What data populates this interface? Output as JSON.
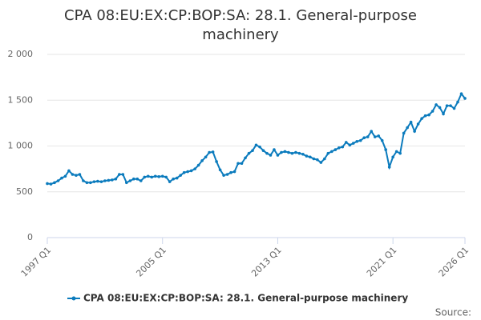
{
  "chart_data": {
    "type": "line",
    "title": "CPA 08:EU:EX:CP:BOP:SA: 28.1. General-purpose machinery",
    "source_label": "Source:",
    "categories": [
      "1997 Q1",
      null,
      null,
      null,
      null,
      null,
      null,
      null,
      null,
      null,
      null,
      null,
      null,
      null,
      null,
      null,
      null,
      null,
      null,
      null,
      null,
      null,
      null,
      null,
      null,
      null,
      null,
      null,
      null,
      null,
      null,
      null,
      "2005 Q1",
      null,
      null,
      null,
      null,
      null,
      null,
      null,
      null,
      null,
      null,
      null,
      null,
      null,
      null,
      null,
      null,
      null,
      null,
      null,
      null,
      null,
      null,
      null,
      null,
      null,
      null,
      null,
      null,
      null,
      null,
      null,
      "2013 Q1",
      null,
      null,
      null,
      null,
      null,
      null,
      null,
      null,
      null,
      null,
      null,
      null,
      null,
      null,
      null,
      null,
      null,
      null,
      null,
      null,
      null,
      null,
      null,
      null,
      null,
      null,
      null,
      null,
      null,
      null,
      null,
      "2021 Q1",
      null,
      null,
      null,
      null,
      null,
      null,
      null,
      null,
      null,
      null,
      null,
      null,
      null,
      null,
      null,
      null,
      null,
      null,
      null,
      "2026 Q1"
    ],
    "series": [
      {
        "name": "CPA 08:EU:EX:CP:BOP:SA: 28.1. General-purpose machinery",
        "color": "#0b7bbd",
        "values": [
          590,
          585,
          600,
          620,
          650,
          670,
          730,
          690,
          680,
          690,
          620,
          600,
          600,
          610,
          615,
          610,
          620,
          625,
          630,
          640,
          690,
          690,
          600,
          620,
          640,
          640,
          620,
          660,
          670,
          660,
          670,
          665,
          670,
          660,
          610,
          640,
          650,
          680,
          710,
          720,
          730,
          750,
          790,
          840,
          880,
          930,
          935,
          830,
          740,
          680,
          690,
          710,
          720,
          810,
          810,
          870,
          920,
          950,
          1010,
          990,
          950,
          920,
          900,
          960,
          900,
          930,
          940,
          930,
          920,
          930,
          920,
          910,
          890,
          880,
          860,
          850,
          820,
          860,
          920,
          940,
          960,
          980,
          990,
          1040,
          1010,
          1030,
          1050,
          1060,
          1090,
          1100,
          1160,
          1100,
          1110,
          1060,
          960,
          770,
          880,
          940,
          920,
          1140,
          1200,
          1260,
          1160,
          1240,
          1300,
          1330,
          1340,
          1380,
          1450,
          1420,
          1350,
          1440,
          1440,
          1410,
          1480,
          1570,
          1520
        ]
      }
    ],
    "ylim": [
      0,
      2000
    ],
    "yticks": [
      0,
      500,
      {
        "value": 1000,
        "label": "1 000"
      },
      {
        "value": 1500,
        "label": "1 500"
      },
      {
        "value": 2000,
        "label": "2 000"
      }
    ],
    "grid": true
  }
}
